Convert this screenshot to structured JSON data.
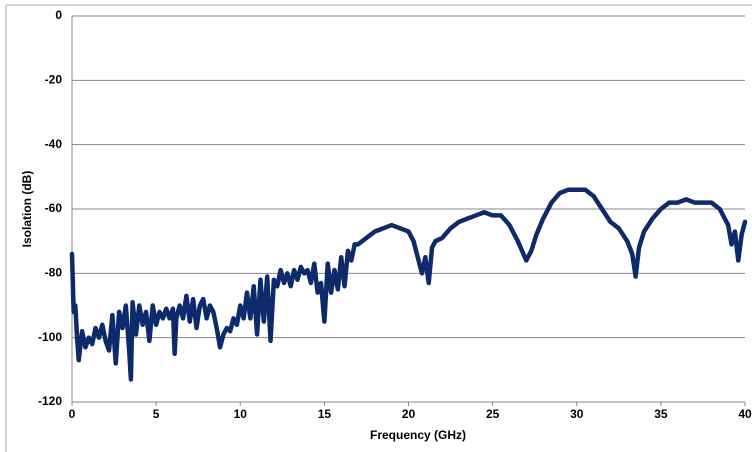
{
  "chart_data": {
    "type": "line",
    "x_label": "Frequency (GHz)",
    "y_label": "Isolation (dB)",
    "xlim": [
      0,
      40
    ],
    "ylim": [
      -120,
      0
    ],
    "xticks": [
      0,
      5,
      10,
      15,
      20,
      25,
      30,
      35,
      40
    ],
    "yticks": [
      0,
      -20,
      -40,
      -60,
      -80,
      -100,
      -120
    ],
    "grid": true,
    "x": [
      0,
      0.1,
      0.2,
      0.3,
      0.4,
      0.6,
      0.8,
      1.0,
      1.2,
      1.4,
      1.6,
      1.8,
      2.0,
      2.2,
      2.4,
      2.6,
      2.8,
      3.0,
      3.2,
      3.4,
      3.5,
      3.6,
      3.8,
      4.0,
      4.2,
      4.4,
      4.6,
      4.8,
      5.0,
      5.2,
      5.4,
      5.6,
      5.8,
      6.0,
      6.1,
      6.2,
      6.4,
      6.6,
      6.8,
      7.0,
      7.2,
      7.4,
      7.6,
      7.8,
      8.0,
      8.2,
      8.4,
      8.6,
      8.8,
      9.0,
      9.2,
      9.4,
      9.6,
      9.8,
      10.0,
      10.2,
      10.4,
      10.6,
      10.8,
      11.0,
      11.2,
      11.4,
      11.6,
      11.8,
      12.0,
      12.2,
      12.4,
      12.6,
      12.8,
      13.0,
      13.2,
      13.4,
      13.6,
      13.8,
      14.0,
      14.2,
      14.4,
      14.6,
      14.8,
      15.0,
      15.2,
      15.4,
      15.6,
      15.8,
      16.0,
      16.2,
      16.4,
      16.6,
      16.8,
      17.0,
      17.5,
      18,
      18.5,
      19,
      19.5,
      20,
      20.3,
      20.6,
      20.8,
      21.0,
      21.2,
      21.4,
      21.6,
      22,
      22.5,
      23,
      23.5,
      24,
      24.5,
      25,
      25.5,
      26,
      26.5,
      27,
      27.3,
      27.6,
      28,
      28.5,
      29,
      29.5,
      30,
      30.5,
      31,
      31.5,
      32,
      32.5,
      33,
      33.3,
      33.5,
      33.7,
      34,
      34.5,
      35,
      35.5,
      36,
      36.5,
      37,
      37.5,
      38,
      38.5,
      39,
      39.2,
      39.4,
      39.6,
      39.8,
      40
    ],
    "series": [
      {
        "color": "#0d2a6b",
        "values": [
          -74,
          -92,
          -90,
          -100,
          -107,
          -98,
          -103,
          -100,
          -102,
          -97,
          -100,
          -96,
          -101,
          -104,
          -93,
          -108,
          -92,
          -97,
          -90,
          -104,
          -113,
          -89,
          -99,
          -90,
          -96,
          -92,
          -101,
          -90,
          -96,
          -92,
          -94,
          -91,
          -94,
          -91,
          -105,
          -94,
          -90,
          -94,
          -87,
          -95,
          -88,
          -97,
          -90,
          -88,
          -94,
          -90,
          -92,
          -97,
          -103,
          -99,
          -97,
          -98,
          -94,
          -96,
          -90,
          -94,
          -86,
          -94,
          -84,
          -99,
          -82,
          -95,
          -81,
          -101,
          -82,
          -84,
          -79,
          -83,
          -80,
          -84,
          -79,
          -82,
          -78,
          -80,
          -79,
          -83,
          -77,
          -86,
          -83,
          -95,
          -77,
          -86,
          -79,
          -85,
          -75,
          -84,
          -73,
          -76,
          -71,
          -71,
          -69,
          -67,
          -66,
          -65,
          -66,
          -67,
          -70,
          -76,
          -80,
          -75,
          -83,
          -72,
          -70,
          -69,
          -66,
          -64,
          -63,
          -62,
          -61,
          -62,
          -62,
          -65,
          -70,
          -76,
          -73,
          -68,
          -63,
          -58,
          -55,
          -54,
          -54,
          -54,
          -56,
          -60,
          -64,
          -66,
          -70,
          -74,
          -81,
          -72,
          -67,
          -63,
          -60,
          -58,
          -58,
          -57,
          -58,
          -58,
          -58,
          -60,
          -65,
          -71,
          -67,
          -76,
          -68,
          -64
        ]
      }
    ]
  }
}
